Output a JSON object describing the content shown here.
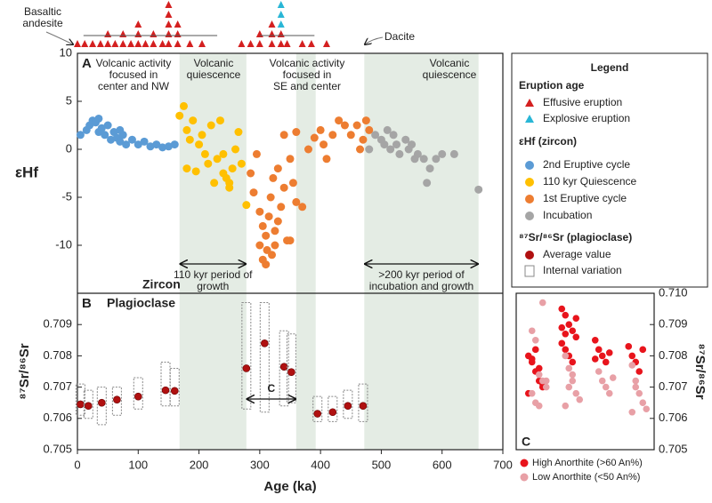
{
  "legend": {
    "title": "Legend",
    "headings": [
      "Eruption age",
      "εHf (zircon)",
      "⁸⁷Sr/⁸⁶Sr (plagioclase)"
    ]
  },
  "chart_data": [
    {
      "type": "scatter",
      "panel_label": "A",
      "label": "Zircon",
      "y_label": "εHf",
      "xlim": [
        0,
        700
      ],
      "ylim": [
        -15,
        10
      ],
      "yticks": [
        -10,
        -5,
        0,
        5,
        10
      ],
      "shaded_ranges": [
        [
          168,
          278
        ],
        [
          360,
          392
        ],
        [
          472,
          660
        ]
      ],
      "annotations": [
        {
          "lines": [
            "Volcanic activity",
            "focused in",
            "center and NW"
          ]
        },
        {
          "lines": [
            "Volcanic",
            "quiescence"
          ]
        },
        {
          "lines": [
            "Volcanic activity",
            "focused in",
            "SE and center"
          ]
        },
        {
          "lines": [
            "Volcanic",
            "quiescence"
          ]
        }
      ],
      "arrows": [
        {
          "range": [
            168,
            278
          ],
          "lines": [
            "110 kyr period of",
            "growth"
          ]
        },
        {
          "range": [
            472,
            660
          ],
          "lines": [
            ">200 kyr period of",
            "incubation and growth"
          ]
        }
      ],
      "eruption_notes": [
        {
          "lines": [
            "Basaltic",
            "andesite"
          ]
        },
        {
          "lines": [
            "Dacite"
          ]
        }
      ],
      "eruptions": [
        {
          "name": "Effusive eruption",
          "color": "#d42020",
          "x": [
            0,
            12,
            25,
            38,
            50,
            62,
            75,
            88,
            100,
            112,
            125,
            140,
            150,
            165,
            185,
            205,
            270,
            285,
            300,
            320,
            335,
            345,
            370,
            385,
            410,
            50,
            75,
            100,
            125,
            150,
            165,
            100,
            150,
            165,
            150,
            150,
            300,
            320,
            335,
            320
          ]
        },
        {
          "name": "Explosive eruption",
          "color": "#29b6d6",
          "x": [
            335,
            335,
            335
          ]
        }
      ],
      "series": [
        {
          "name": "2nd Eruptive cycle",
          "color": "#5b9bd5",
          "x": [
            5,
            15,
            20,
            25,
            30,
            35,
            40,
            45,
            50,
            55,
            60,
            65,
            70,
            75,
            80,
            90,
            100,
            110,
            120,
            130,
            140,
            150,
            160,
            35,
            70
          ],
          "values": [
            1.5,
            2,
            2.5,
            3,
            2.8,
            1.8,
            2.2,
            1.5,
            2.5,
            1,
            1.8,
            1.2,
            0.8,
            1.5,
            0.5,
            1,
            0.5,
            0.8,
            0.3,
            0.5,
            0.2,
            0.3,
            0.5,
            3.2,
            2
          ]
        },
        {
          "name": "110 kyr Quiescence",
          "color": "#ffc000",
          "x": [
            168,
            175,
            180,
            185,
            190,
            200,
            205,
            210,
            215,
            220,
            225,
            230,
            235,
            240,
            245,
            250,
            255,
            260,
            270,
            278,
            180,
            195,
            250,
            240,
            265
          ],
          "values": [
            3.5,
            4.5,
            2,
            1,
            3,
            0.5,
            1.5,
            -0.5,
            -1.5,
            2.5,
            -3.5,
            -1,
            3,
            -2.5,
            -3,
            -4,
            -2,
            0,
            -1.5,
            -5.8,
            -2,
            -2.3,
            -3.5,
            -0.5,
            1.8
          ]
        },
        {
          "name": "1st Eruptive cycle",
          "color": "#ed7d31",
          "x": [
            285,
            290,
            295,
            300,
            305,
            310,
            312,
            315,
            318,
            320,
            322,
            325,
            330,
            335,
            340,
            345,
            350,
            355,
            360,
            370,
            380,
            390,
            400,
            405,
            410,
            420,
            430,
            440,
            450,
            460,
            465,
            470,
            475,
            480,
            340,
            360,
            300,
            310,
            325,
            350,
            305,
            330
          ],
          "values": [
            -2.5,
            -4.5,
            -0.5,
            -6.5,
            -8,
            -9,
            -10.5,
            -7,
            -5,
            -11,
            -3,
            -8.5,
            -2,
            -6,
            -4,
            -9.5,
            -1,
            -3.5,
            -5.5,
            -6,
            0,
            1.2,
            2,
            0.5,
            -1,
            1.5,
            3,
            2.5,
            1.5,
            2.5,
            0,
            1,
            3,
            2,
            1.5,
            1.8,
            -10,
            -12,
            -10,
            -9.5,
            -11.5,
            -7.5
          ]
        },
        {
          "name": "Incubation",
          "color": "#a5a5a5",
          "x": [
            480,
            490,
            500,
            505,
            510,
            515,
            520,
            525,
            530,
            540,
            545,
            550,
            560,
            570,
            575,
            580,
            590,
            600,
            620,
            660,
            555
          ],
          "values": [
            0,
            1.5,
            1,
            0.5,
            2,
            0,
            1.5,
            0.5,
            -0.5,
            1,
            0,
            0.5,
            -0.5,
            -1,
            -3.5,
            -2,
            -1,
            -0.5,
            -0.5,
            -4.2,
            -1
          ]
        }
      ]
    },
    {
      "type": "range",
      "panel_label": "B",
      "label": "Plagioclase",
      "y_label": "⁸⁷Sr/⁸⁶Sr",
      "x_label": "Age (ka)",
      "xlim": [
        0,
        700
      ],
      "xticks": [
        0,
        100,
        200,
        300,
        400,
        500,
        600,
        700
      ],
      "ylim": [
        0.705,
        0.71
      ],
      "yticks": [
        0.705,
        0.706,
        0.707,
        0.708,
        0.709
      ],
      "arrow": {
        "range": [
          278,
          360
        ],
        "label": "C"
      },
      "series": [
        {
          "name": "Average value",
          "range_name": "Internal variation",
          "color": "#b01010",
          "x": [
            5,
            18,
            40,
            65,
            100,
            145,
            160,
            278,
            308,
            340,
            352,
            395,
            420,
            445,
            470
          ],
          "values": [
            0.70645,
            0.7064,
            0.7065,
            0.7066,
            0.7067,
            0.7069,
            0.70688,
            0.7076,
            0.7084,
            0.70765,
            0.70748,
            0.70615,
            0.7062,
            0.7064,
            0.7064
          ],
          "low": [
            0.7061,
            0.706,
            0.7058,
            0.7061,
            0.7063,
            0.7064,
            0.7064,
            0.7063,
            0.7062,
            0.7064,
            0.7065,
            0.7059,
            0.7059,
            0.706,
            0.7059
          ],
          "high": [
            0.7071,
            0.7069,
            0.707,
            0.707,
            0.7073,
            0.7078,
            0.7076,
            0.7097,
            0.7097,
            0.7088,
            0.7087,
            0.7067,
            0.7067,
            0.7069,
            0.7071
          ]
        }
      ]
    },
    {
      "type": "strip",
      "panel_label": "C",
      "y_label": "⁸⁷Sr/⁸⁶Sr",
      "categories": [
        null,
        null,
        null,
        null
      ],
      "y2lim": [
        0.705,
        0.71
      ],
      "y2ticks": [
        0.705,
        0.706,
        0.707,
        0.708,
        0.709,
        {
          "value": 0.71,
          "label": "0.710"
        }
      ],
      "series": [
        {
          "name": "High Anorthite (>60 An%)",
          "color": "#e8141c",
          "axis": "y2",
          "values": [
            [
              0.708,
              0.7078,
              0.7075,
              0.7072,
              0.707,
              0.7068,
              0.7079,
              0.7082,
              0.7076,
              0.7071
            ],
            [
              0.7095,
              0.7093,
              0.709,
              0.7088,
              0.7086,
              0.7084,
              0.7082,
              0.708,
              0.7078,
              0.7092,
              0.7089,
              0.7087
            ],
            [
              0.7085,
              0.7082,
              0.708,
              0.7078,
              0.7081,
              0.7079
            ],
            [
              0.7083,
              0.708,
              0.7078,
              0.7075,
              0.7082
            ]
          ]
        },
        {
          "name": "Low Anorthite (<50 An%)",
          "color": "#e8a0a6",
          "axis": "y2",
          "values": [
            [
              0.7088,
              0.7085,
              0.7074,
              0.7072,
              0.707,
              0.7068,
              0.7065,
              0.7064,
              0.7097,
              0.7072
            ],
            [
              0.708,
              0.7076,
              0.7072,
              0.7068,
              0.7066,
              0.7064,
              0.707,
              0.7074
            ],
            [
              0.7075,
              0.7072,
              0.707,
              0.7068,
              0.7073
            ],
            [
              0.7077,
              0.7072,
              0.7068,
              0.7065,
              0.7063,
              0.7062,
              0.707
            ]
          ]
        }
      ]
    }
  ]
}
